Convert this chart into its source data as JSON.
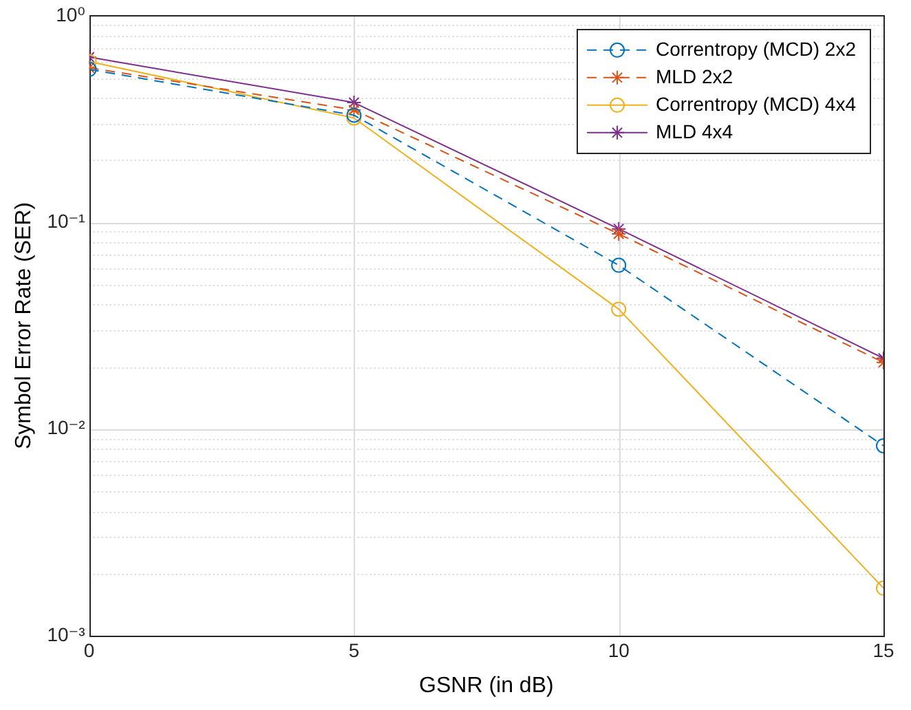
{
  "chart_data": {
    "type": "line",
    "xlabel": "GSNR (in dB)",
    "ylabel": "Symbol Error Rate (SER)",
    "x": [
      0,
      5,
      10,
      15
    ],
    "log": "y",
    "grid": true,
    "legend": "top right",
    "xlim": [
      0,
      15
    ],
    "xticks": [
      0,
      5,
      10,
      15
    ],
    "ylim": [
      0.001,
      1
    ],
    "yticks": [
      {
        "value": 0.001,
        "label": "10⁻³"
      },
      {
        "value": 0.002,
        "label": null
      },
      {
        "value": 0.003,
        "label": null
      },
      {
        "value": 0.004,
        "label": null
      },
      {
        "value": 0.005,
        "label": null
      },
      {
        "value": 0.006,
        "label": null
      },
      {
        "value": 0.007,
        "label": null
      },
      {
        "value": 0.008,
        "label": null
      },
      {
        "value": 0.009,
        "label": null
      },
      {
        "value": 0.01,
        "label": "10⁻²"
      },
      {
        "value": 0.02,
        "label": null
      },
      {
        "value": 0.03,
        "label": null
      },
      {
        "value": 0.04,
        "label": null
      },
      {
        "value": 0.05,
        "label": null
      },
      {
        "value": 0.06,
        "label": null
      },
      {
        "value": 0.07,
        "label": null
      },
      {
        "value": 0.08,
        "label": null
      },
      {
        "value": 0.09,
        "label": null
      },
      {
        "value": 0.1,
        "label": "10⁻¹"
      },
      {
        "value": 0.2,
        "label": null
      },
      {
        "value": 0.3,
        "label": null
      },
      {
        "value": 0.4,
        "label": null
      },
      {
        "value": 0.5,
        "label": null
      },
      {
        "value": 0.6,
        "label": null
      },
      {
        "value": 0.7,
        "label": null
      },
      {
        "value": 0.8,
        "label": null
      },
      {
        "value": 0.9,
        "label": null
      },
      {
        "value": 1,
        "label": "10⁰"
      }
    ],
    "series": [
      {
        "name": "Correntropy (MCD) 2x2",
        "color": "#0072bd",
        "marker": "circle",
        "line_style": "dashed",
        "values": [
          0.55,
          0.33,
          0.062,
          0.0083
        ]
      },
      {
        "name": "MLD 2x2",
        "color": "#d95319",
        "marker": "cross",
        "line_style": "dashed",
        "values": [
          0.56,
          0.35,
          0.088,
          0.021
        ]
      },
      {
        "name": "Correntropy (MCD) 4x4",
        "color": "#edb120",
        "marker": "circle",
        "line_style": "solid",
        "values": [
          0.6,
          0.32,
          0.038,
          0.0017
        ]
      },
      {
        "name": "MLD 4x4",
        "color": "#7e2f8e",
        "marker": "cross",
        "line_style": "solid",
        "values": [
          0.63,
          0.38,
          0.093,
          0.022
        ]
      }
    ]
  }
}
